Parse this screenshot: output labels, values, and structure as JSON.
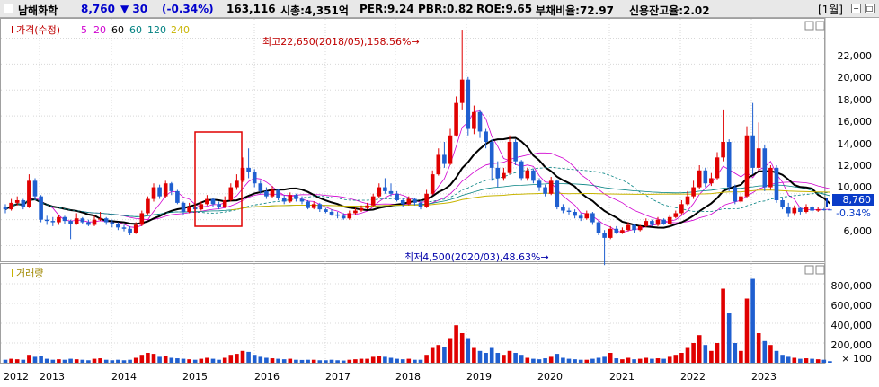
{
  "header": {
    "name": "남해화학",
    "price": "8,760",
    "change": "▼ 30",
    "change_pct": "(-0.34%)",
    "volume": "163,116",
    "mktcap": "시총:4,351억",
    "per": "PER:9.24",
    "pbr": "PBR:0.82",
    "roe": "ROE:9.65",
    "debt": "부채비율:72.97",
    "credit": "신용잔고율:2.02",
    "period": "[1월]",
    "colors": {
      "name": "#000000",
      "price": "#0000cc",
      "down": "#0000cc"
    }
  },
  "price_panel": {
    "legend_price": "가격(수정)",
    "legend_ma": [
      "5",
      "20",
      "60",
      "60",
      "120",
      "240"
    ],
    "legend_colors": [
      "#c00000",
      "#d000d0",
      "#d000d0",
      "#000000",
      "#008080",
      "#008080",
      "#c8b400"
    ],
    "yticks": [
      "22,000",
      "20,000",
      "18,000",
      "16,000",
      "14,000",
      "12,000",
      "10,000",
      "8,760",
      "-0.34%",
      "6,000"
    ],
    "high_label": "최고22,650(2018/05),158.56%→",
    "low_label": "최저4,500(2020/03),48.63%→"
  },
  "volume_panel": {
    "legend": "거래량",
    "yticks": [
      "800,000",
      "600,000",
      "400,000",
      "200,000",
      "× 100"
    ]
  },
  "xaxis": [
    "2012",
    "2013",
    "2014",
    "2015",
    "2016",
    "2017",
    "2018",
    "2019",
    "2020",
    "2021",
    "2022",
    "2023"
  ],
  "chart_data": {
    "type": "candlestick",
    "price_range": [
      5000,
      23000
    ],
    "volume_range": [
      0,
      900000
    ],
    "x_start": "2012-09",
    "candles": [
      [
        9000,
        8800,
        9200,
        8500,
        30000
      ],
      [
        8800,
        9300,
        9600,
        8700,
        40000
      ],
      [
        9300,
        9500,
        9800,
        9100,
        35000
      ],
      [
        9500,
        9000,
        9600,
        8800,
        30000
      ],
      [
        9000,
        11000,
        11500,
        8900,
        80000
      ],
      [
        11000,
        9800,
        11200,
        9500,
        60000
      ],
      [
        9800,
        8000,
        9900,
        7800,
        70000
      ],
      [
        8000,
        7900,
        8300,
        7600,
        40000
      ],
      [
        7900,
        7800,
        8200,
        7500,
        30000
      ],
      [
        7800,
        8200,
        8400,
        7600,
        35000
      ],
      [
        8200,
        7900,
        8300,
        7700,
        30000
      ],
      [
        7900,
        7700,
        8000,
        6500,
        40000
      ],
      [
        7700,
        8100,
        8500,
        7600,
        35000
      ],
      [
        8100,
        7800,
        8200,
        7700,
        30000
      ],
      [
        7800,
        7600,
        8000,
        7500,
        25000
      ],
      [
        7600,
        8000,
        8300,
        7500,
        40000
      ],
      [
        8000,
        8100,
        8600,
        7900,
        45000
      ],
      [
        8100,
        7800,
        8200,
        7600,
        30000
      ],
      [
        7800,
        7700,
        8000,
        7400,
        25000
      ],
      [
        7700,
        7400,
        7800,
        7200,
        30000
      ],
      [
        7400,
        7300,
        7600,
        7100,
        25000
      ],
      [
        7300,
        7000,
        7500,
        6800,
        30000
      ],
      [
        7000,
        7600,
        7800,
        6900,
        50000
      ],
      [
        7600,
        8500,
        8700,
        7500,
        80000
      ],
      [
        8500,
        9600,
        9800,
        8400,
        100000
      ],
      [
        9600,
        10500,
        10800,
        9400,
        90000
      ],
      [
        10500,
        9800,
        10700,
        9600,
        60000
      ],
      [
        9800,
        10800,
        11000,
        9700,
        70000
      ],
      [
        10800,
        10200,
        10900,
        9900,
        50000
      ],
      [
        10200,
        9300,
        10300,
        9200,
        45000
      ],
      [
        9300,
        8600,
        9400,
        8400,
        40000
      ],
      [
        8600,
        9000,
        9300,
        8500,
        35000
      ],
      [
        9000,
        8800,
        9200,
        8600,
        30000
      ],
      [
        8800,
        9200,
        9400,
        8700,
        40000
      ],
      [
        9200,
        9600,
        9900,
        9100,
        50000
      ],
      [
        9600,
        9200,
        9700,
        9000,
        40000
      ],
      [
        9200,
        9000,
        9400,
        8800,
        30000
      ],
      [
        9000,
        9500,
        9800,
        8900,
        50000
      ],
      [
        9500,
        10500,
        10800,
        9400,
        80000
      ],
      [
        10500,
        11000,
        11500,
        10300,
        90000
      ],
      [
        11000,
        12000,
        12800,
        10900,
        120000
      ],
      [
        12000,
        11700,
        13500,
        11200,
        110000
      ],
      [
        11700,
        10800,
        11900,
        10500,
        80000
      ],
      [
        10800,
        10200,
        11000,
        10000,
        60000
      ],
      [
        10200,
        9800,
        10500,
        9600,
        50000
      ],
      [
        9800,
        10300,
        10600,
        9700,
        45000
      ],
      [
        10300,
        9700,
        10400,
        9500,
        40000
      ],
      [
        9700,
        9400,
        9900,
        9200,
        35000
      ],
      [
        9400,
        9900,
        10100,
        9300,
        40000
      ],
      [
        9900,
        9600,
        10000,
        9400,
        30000
      ],
      [
        9600,
        9400,
        9800,
        9200,
        28000
      ],
      [
        9400,
        8900,
        9500,
        8800,
        30000
      ],
      [
        8900,
        9200,
        9400,
        8800,
        30000
      ],
      [
        9200,
        8800,
        9300,
        8600,
        25000
      ],
      [
        8800,
        8600,
        8900,
        8500,
        25000
      ],
      [
        8600,
        8400,
        8800,
        8300,
        30000
      ],
      [
        8400,
        8300,
        8600,
        8100,
        25000
      ],
      [
        8300,
        8100,
        8500,
        8000,
        22000
      ],
      [
        8100,
        8500,
        8700,
        8000,
        30000
      ],
      [
        8500,
        8700,
        8900,
        8400,
        35000
      ],
      [
        8700,
        8900,
        9100,
        8600,
        40000
      ],
      [
        8900,
        9100,
        9300,
        8800,
        40000
      ],
      [
        9100,
        9800,
        10000,
        9000,
        60000
      ],
      [
        9800,
        10500,
        10800,
        9700,
        70000
      ],
      [
        10500,
        10200,
        11200,
        10000,
        60000
      ],
      [
        10200,
        10000,
        10800,
        9800,
        50000
      ],
      [
        10000,
        9500,
        10200,
        9400,
        40000
      ],
      [
        9500,
        9200,
        9700,
        9000,
        35000
      ],
      [
        9200,
        9600,
        9800,
        9100,
        40000
      ],
      [
        9600,
        9300,
        9700,
        9100,
        30000
      ],
      [
        9300,
        9000,
        9500,
        8800,
        30000
      ],
      [
        9000,
        10000,
        10300,
        8900,
        80000
      ],
      [
        10000,
        11500,
        11800,
        9900,
        150000
      ],
      [
        11500,
        13000,
        13500,
        11400,
        180000
      ],
      [
        13000,
        12300,
        14000,
        12000,
        160000
      ],
      [
        12300,
        14500,
        15000,
        12200,
        250000
      ],
      [
        14500,
        17000,
        17500,
        14400,
        380000
      ],
      [
        17000,
        18800,
        22650,
        16500,
        300000
      ],
      [
        18800,
        15000,
        19000,
        14500,
        250000
      ],
      [
        15000,
        16300,
        16800,
        14600,
        150000
      ],
      [
        16300,
        14800,
        16500,
        14300,
        120000
      ],
      [
        14800,
        14000,
        15000,
        13500,
        100000
      ],
      [
        14000,
        12000,
        14200,
        11000,
        150000
      ],
      [
        12000,
        11200,
        12500,
        10500,
        100000
      ],
      [
        11200,
        11600,
        12000,
        11000,
        80000
      ],
      [
        11600,
        14000,
        14500,
        11500,
        120000
      ],
      [
        14000,
        12500,
        14200,
        12200,
        100000
      ],
      [
        12500,
        11200,
        12600,
        11000,
        80000
      ],
      [
        11200,
        11800,
        12000,
        11000,
        50000
      ],
      [
        11800,
        11000,
        11900,
        10800,
        40000
      ],
      [
        11000,
        10500,
        11200,
        10200,
        35000
      ],
      [
        10500,
        10000,
        10700,
        9800,
        45000
      ],
      [
        10000,
        11000,
        11300,
        9900,
        60000
      ],
      [
        11000,
        9000,
        11100,
        8800,
        90000
      ],
      [
        9000,
        8700,
        9200,
        8500,
        50000
      ],
      [
        8700,
        8600,
        8900,
        8400,
        40000
      ],
      [
        8600,
        8300,
        8800,
        8100,
        35000
      ],
      [
        8300,
        8100,
        8500,
        7900,
        30000
      ],
      [
        8100,
        8500,
        8700,
        8000,
        30000
      ],
      [
        8500,
        7800,
        8600,
        7600,
        40000
      ],
      [
        7800,
        7000,
        7900,
        6800,
        50000
      ],
      [
        7000,
        6600,
        7200,
        4500,
        60000
      ],
      [
        6600,
        7300,
        7500,
        6500,
        100000
      ],
      [
        7300,
        7000,
        7500,
        6900,
        45000
      ],
      [
        7000,
        7200,
        7400,
        6900,
        35000
      ],
      [
        7200,
        7600,
        7800,
        7100,
        50000
      ],
      [
        7600,
        7200,
        7700,
        7000,
        35000
      ],
      [
        7200,
        7500,
        7600,
        7100,
        40000
      ],
      [
        7500,
        7900,
        8100,
        7400,
        50000
      ],
      [
        7900,
        7600,
        8000,
        7500,
        40000
      ],
      [
        7600,
        8000,
        8200,
        7500,
        45000
      ],
      [
        8000,
        7700,
        8100,
        7600,
        40000
      ],
      [
        7700,
        8200,
        8400,
        7600,
        60000
      ],
      [
        8200,
        8500,
        8700,
        8100,
        80000
      ],
      [
        8500,
        9200,
        9500,
        8400,
        100000
      ],
      [
        9200,
        9800,
        10200,
        9100,
        150000
      ],
      [
        9800,
        10500,
        11000,
        9600,
        200000
      ],
      [
        10500,
        11800,
        12200,
        10400,
        280000
      ],
      [
        11800,
        10800,
        12000,
        10500,
        180000
      ],
      [
        10800,
        11200,
        11600,
        10600,
        120000
      ],
      [
        11200,
        12800,
        13200,
        11100,
        200000
      ],
      [
        12800,
        14000,
        16500,
        12500,
        750000
      ],
      [
        14000,
        10500,
        14200,
        10200,
        500000
      ],
      [
        10500,
        9400,
        10700,
        9200,
        200000
      ],
      [
        9400,
        9800,
        10000,
        9300,
        120000
      ],
      [
        9800,
        14500,
        15200,
        9700,
        650000
      ],
      [
        14500,
        12000,
        17000,
        11500,
        850000
      ],
      [
        12000,
        13500,
        15500,
        11800,
        300000
      ],
      [
        13500,
        10500,
        13800,
        10200,
        220000
      ],
      [
        10500,
        12000,
        12200,
        10300,
        180000
      ],
      [
        12000,
        9500,
        12200,
        9300,
        120000
      ],
      [
        9500,
        9000,
        9700,
        8800,
        80000
      ],
      [
        9000,
        8500,
        9300,
        8200,
        60000
      ],
      [
        8500,
        8900,
        9100,
        8300,
        50000
      ],
      [
        8900,
        8600,
        9000,
        8400,
        40000
      ],
      [
        8600,
        9000,
        9200,
        8500,
        45000
      ],
      [
        9000,
        8700,
        9100,
        8500,
        40000
      ],
      [
        8700,
        8800,
        9000,
        8600,
        35000
      ],
      [
        8800,
        8790,
        8900,
        8700,
        30000
      ],
      [
        8790,
        8760,
        8850,
        8700,
        16000
      ]
    ]
  }
}
